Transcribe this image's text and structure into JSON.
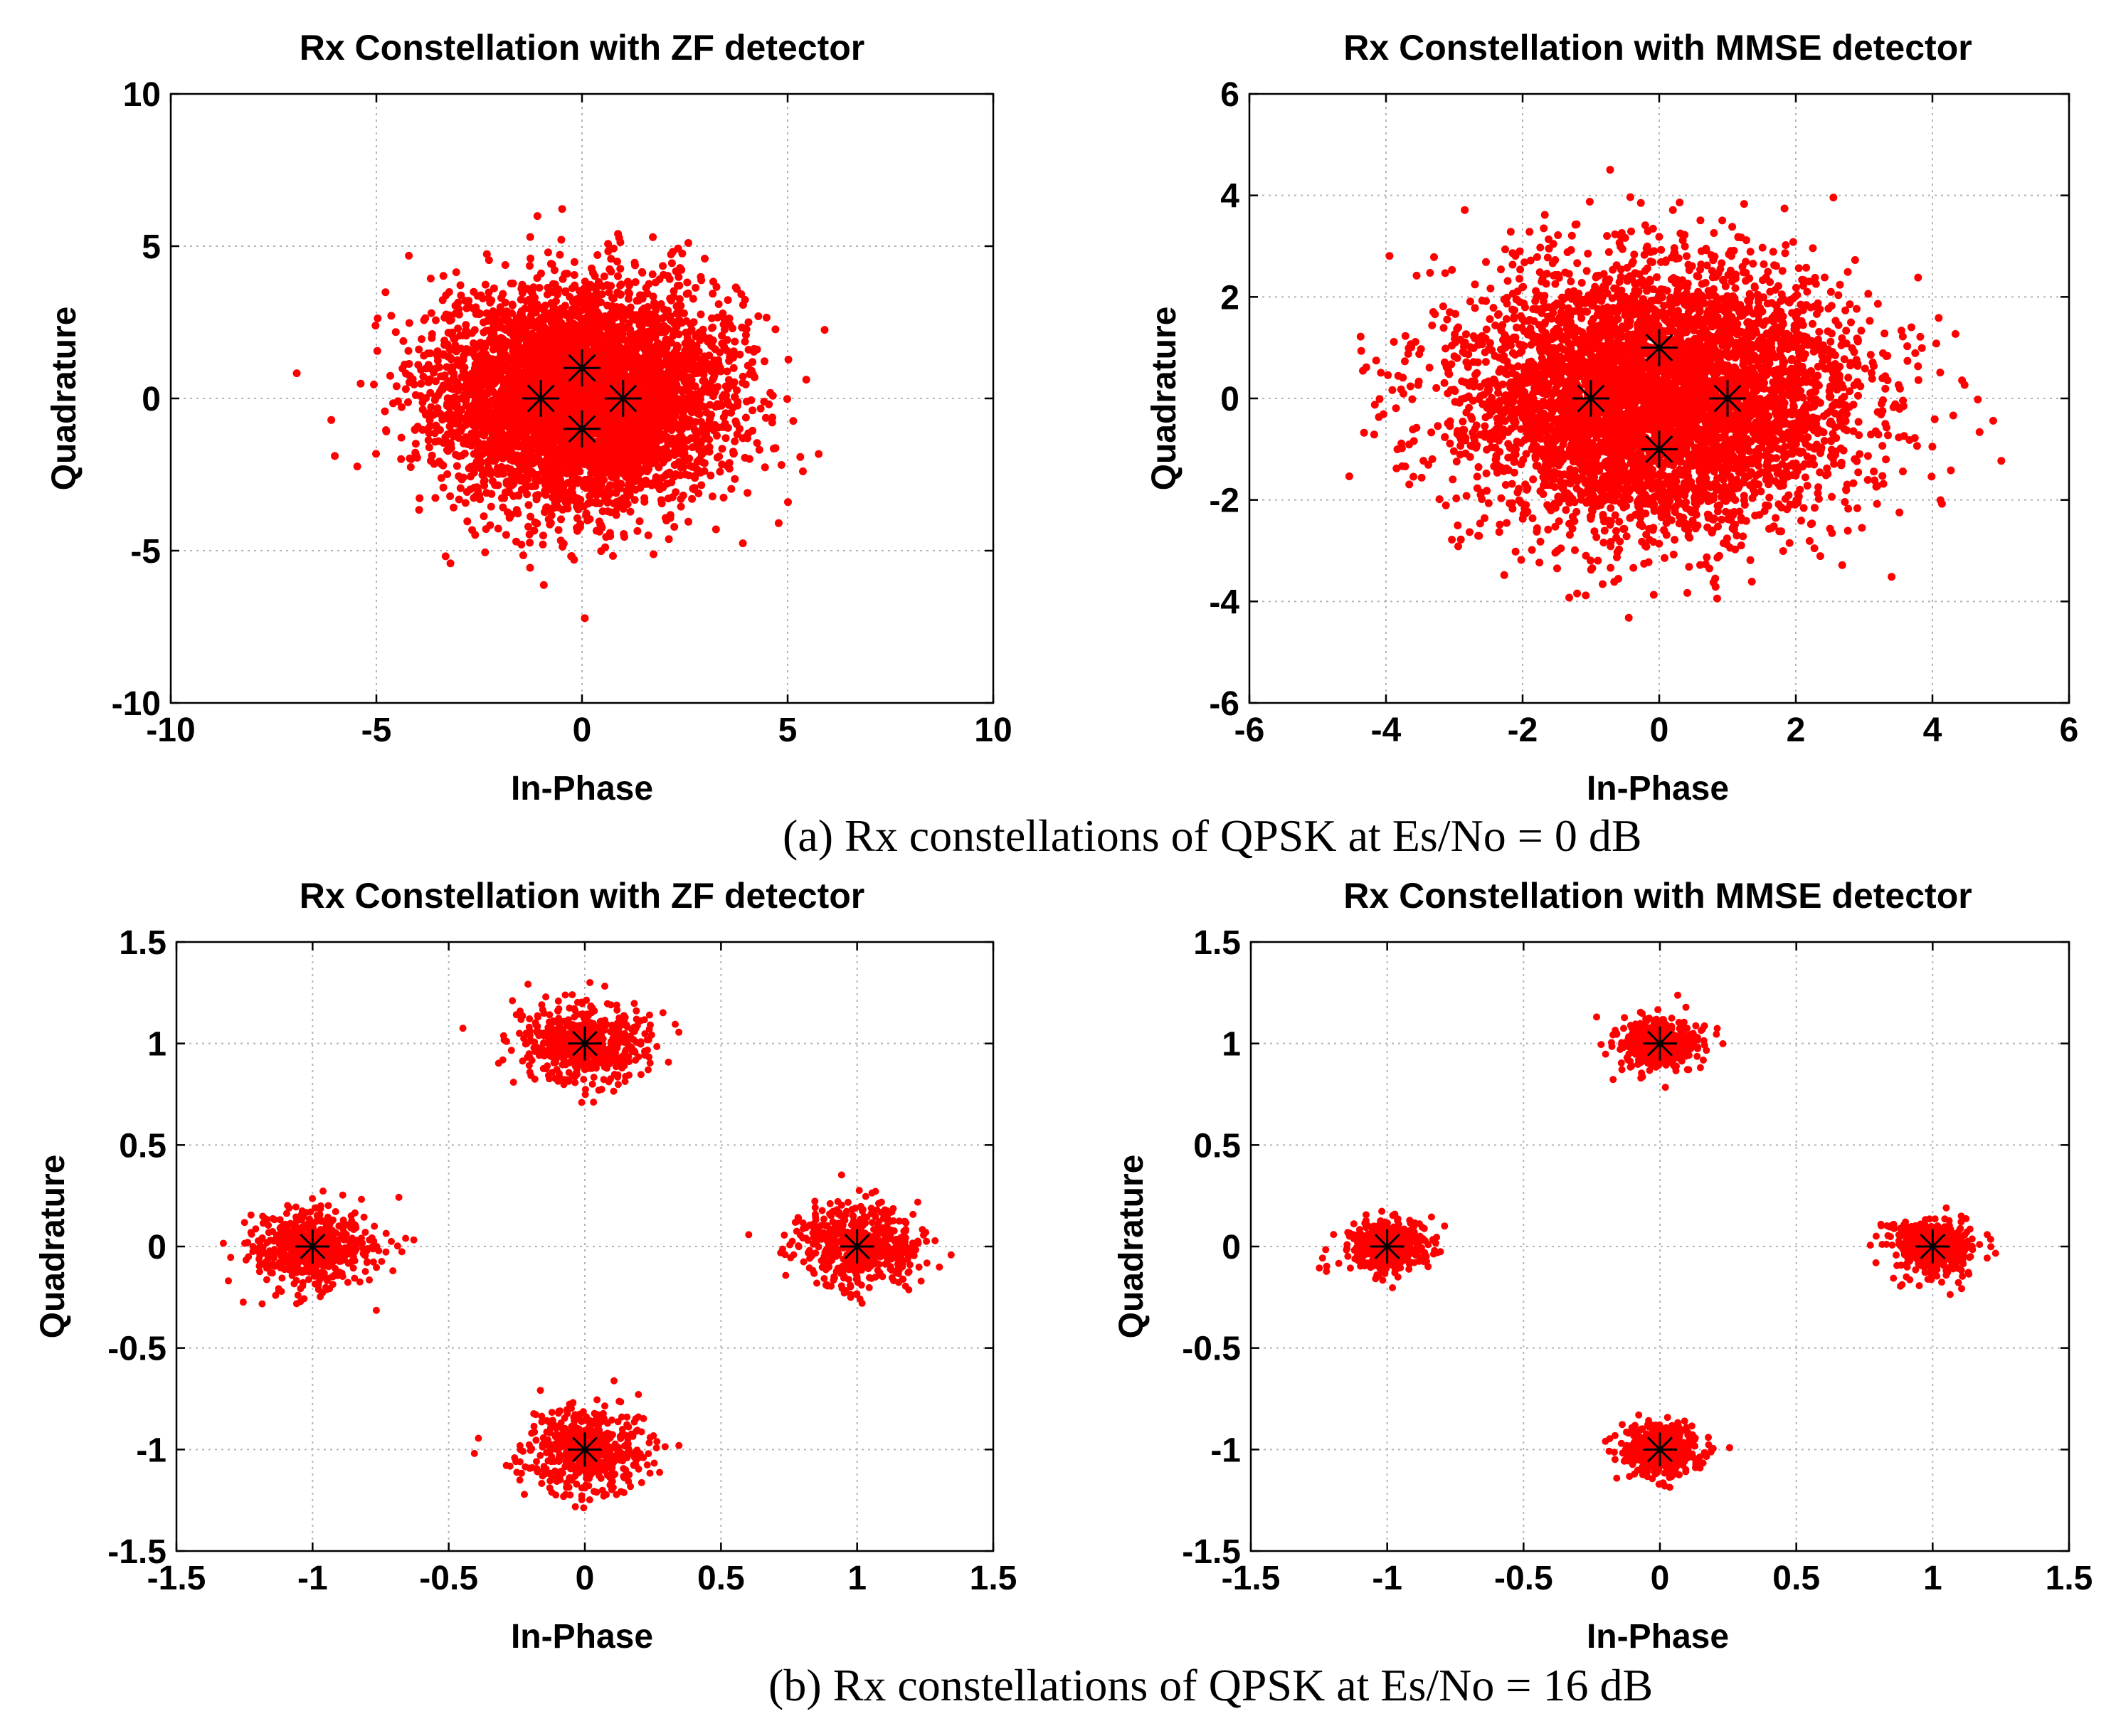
{
  "captions": {
    "a": "(a)  Rx constellations of QPSK at Es/No = 0 dB",
    "b": "(b)  Rx constellations of QPSK at Es/No = 16 dB"
  },
  "colors": {
    "samples": "#ff0000",
    "reference": "#000000",
    "grid": "#b4b4b4"
  },
  "chart_data": [
    {
      "type": "scatter",
      "title": "Rx Constellation with ZF detector",
      "xlabel": "In-Phase",
      "ylabel": "Quadrature",
      "xlim": [
        -10,
        10
      ],
      "ylim": [
        -10,
        10
      ],
      "xticks": [
        -10,
        -5,
        0,
        5,
        10
      ],
      "yticks": [
        -10,
        -5,
        0,
        5,
        10
      ],
      "xtick_labels": [
        "-10",
        "-5",
        "0",
        "5",
        "10"
      ],
      "ytick_labels": [
        "-10",
        "-5",
        "0",
        "5",
        "10"
      ],
      "grid": true,
      "reference_points": [
        [
          1,
          0
        ],
        [
          0,
          1
        ],
        [
          -1,
          0
        ],
        [
          0,
          -1
        ]
      ],
      "noise_std": [
        1.6,
        1.6
      ],
      "sample_count": 5200,
      "extent": [
        -7.1,
        7.1,
        -8.5,
        7.7
      ]
    },
    {
      "type": "scatter",
      "title": "Rx Constellation with MMSE detector",
      "xlabel": "In-Phase",
      "ylabel": "Quadrature",
      "xlim": [
        -6,
        6
      ],
      "ylim": [
        -6,
        6
      ],
      "xticks": [
        -6,
        -4,
        -2,
        0,
        2,
        4,
        6
      ],
      "yticks": [
        -6,
        -4,
        -2,
        0,
        2,
        4,
        6
      ],
      "xtick_labels": [
        "-6",
        "-4",
        "-2",
        "0",
        "2",
        "4",
        "6"
      ],
      "ytick_labels": [
        "-6",
        "-4",
        "-2",
        "0",
        "2",
        "4",
        "6"
      ],
      "grid": true,
      "reference_points": [
        [
          1,
          0
        ],
        [
          0,
          1
        ],
        [
          -1,
          0
        ],
        [
          0,
          -1
        ]
      ],
      "noise_std": [
        1.25,
        1.05
      ],
      "sample_count": 5200,
      "extent": [
        -5.2,
        5.6,
        -5.5,
        4.9
      ]
    },
    {
      "type": "scatter",
      "title": "Rx Constellation with ZF detector",
      "xlabel": "In-Phase",
      "ylabel": "Quadrature",
      "xlim": [
        -1.5,
        1.5
      ],
      "ylim": [
        -1.5,
        1.5
      ],
      "xticks": [
        -1.5,
        -1,
        -0.5,
        0,
        0.5,
        1,
        1.5
      ],
      "yticks": [
        -1.5,
        -1,
        -0.5,
        0,
        0.5,
        1,
        1.5
      ],
      "xtick_labels": [
        "-1.5",
        "-1",
        "-0.5",
        "0",
        "0.5",
        "1",
        "1.5"
      ],
      "ytick_labels": [
        "-1.5",
        "-1",
        "-0.5",
        "0",
        "0.5",
        "1",
        "1.5"
      ],
      "grid": true,
      "reference_points": [
        [
          1,
          0
        ],
        [
          0,
          1
        ],
        [
          -1,
          0
        ],
        [
          0,
          -1
        ]
      ],
      "noise_std": [
        0.115,
        0.1
      ],
      "sample_count": 2200,
      "extent": [
        -1.45,
        1.45,
        -1.4,
        1.4
      ]
    },
    {
      "type": "scatter",
      "title": "Rx Constellation with MMSE detector",
      "xlabel": "In-Phase",
      "ylabel": "Quadrature",
      "xlim": [
        -1.5,
        1.5
      ],
      "ylim": [
        -1.5,
        1.5
      ],
      "xticks": [
        -1.5,
        -1,
        -0.5,
        0,
        0.5,
        1,
        1.5
      ],
      "yticks": [
        -1.5,
        -1,
        -0.5,
        0,
        0.5,
        1,
        1.5
      ],
      "xtick_labels": [
        "-1.5",
        "-1",
        "-0.5",
        "0",
        "0.5",
        "1",
        "1.5"
      ],
      "ytick_labels": [
        "-1.5",
        "-1",
        "-0.5",
        "0",
        "0.5",
        "1",
        "1.5"
      ],
      "grid": true,
      "reference_points": [
        [
          1,
          0
        ],
        [
          0,
          1
        ],
        [
          -1,
          0
        ],
        [
          0,
          -1
        ]
      ],
      "noise_std": [
        0.075,
        0.065
      ],
      "sample_count": 1800,
      "extent": [
        -1.3,
        1.3,
        -1.3,
        1.3
      ]
    }
  ]
}
